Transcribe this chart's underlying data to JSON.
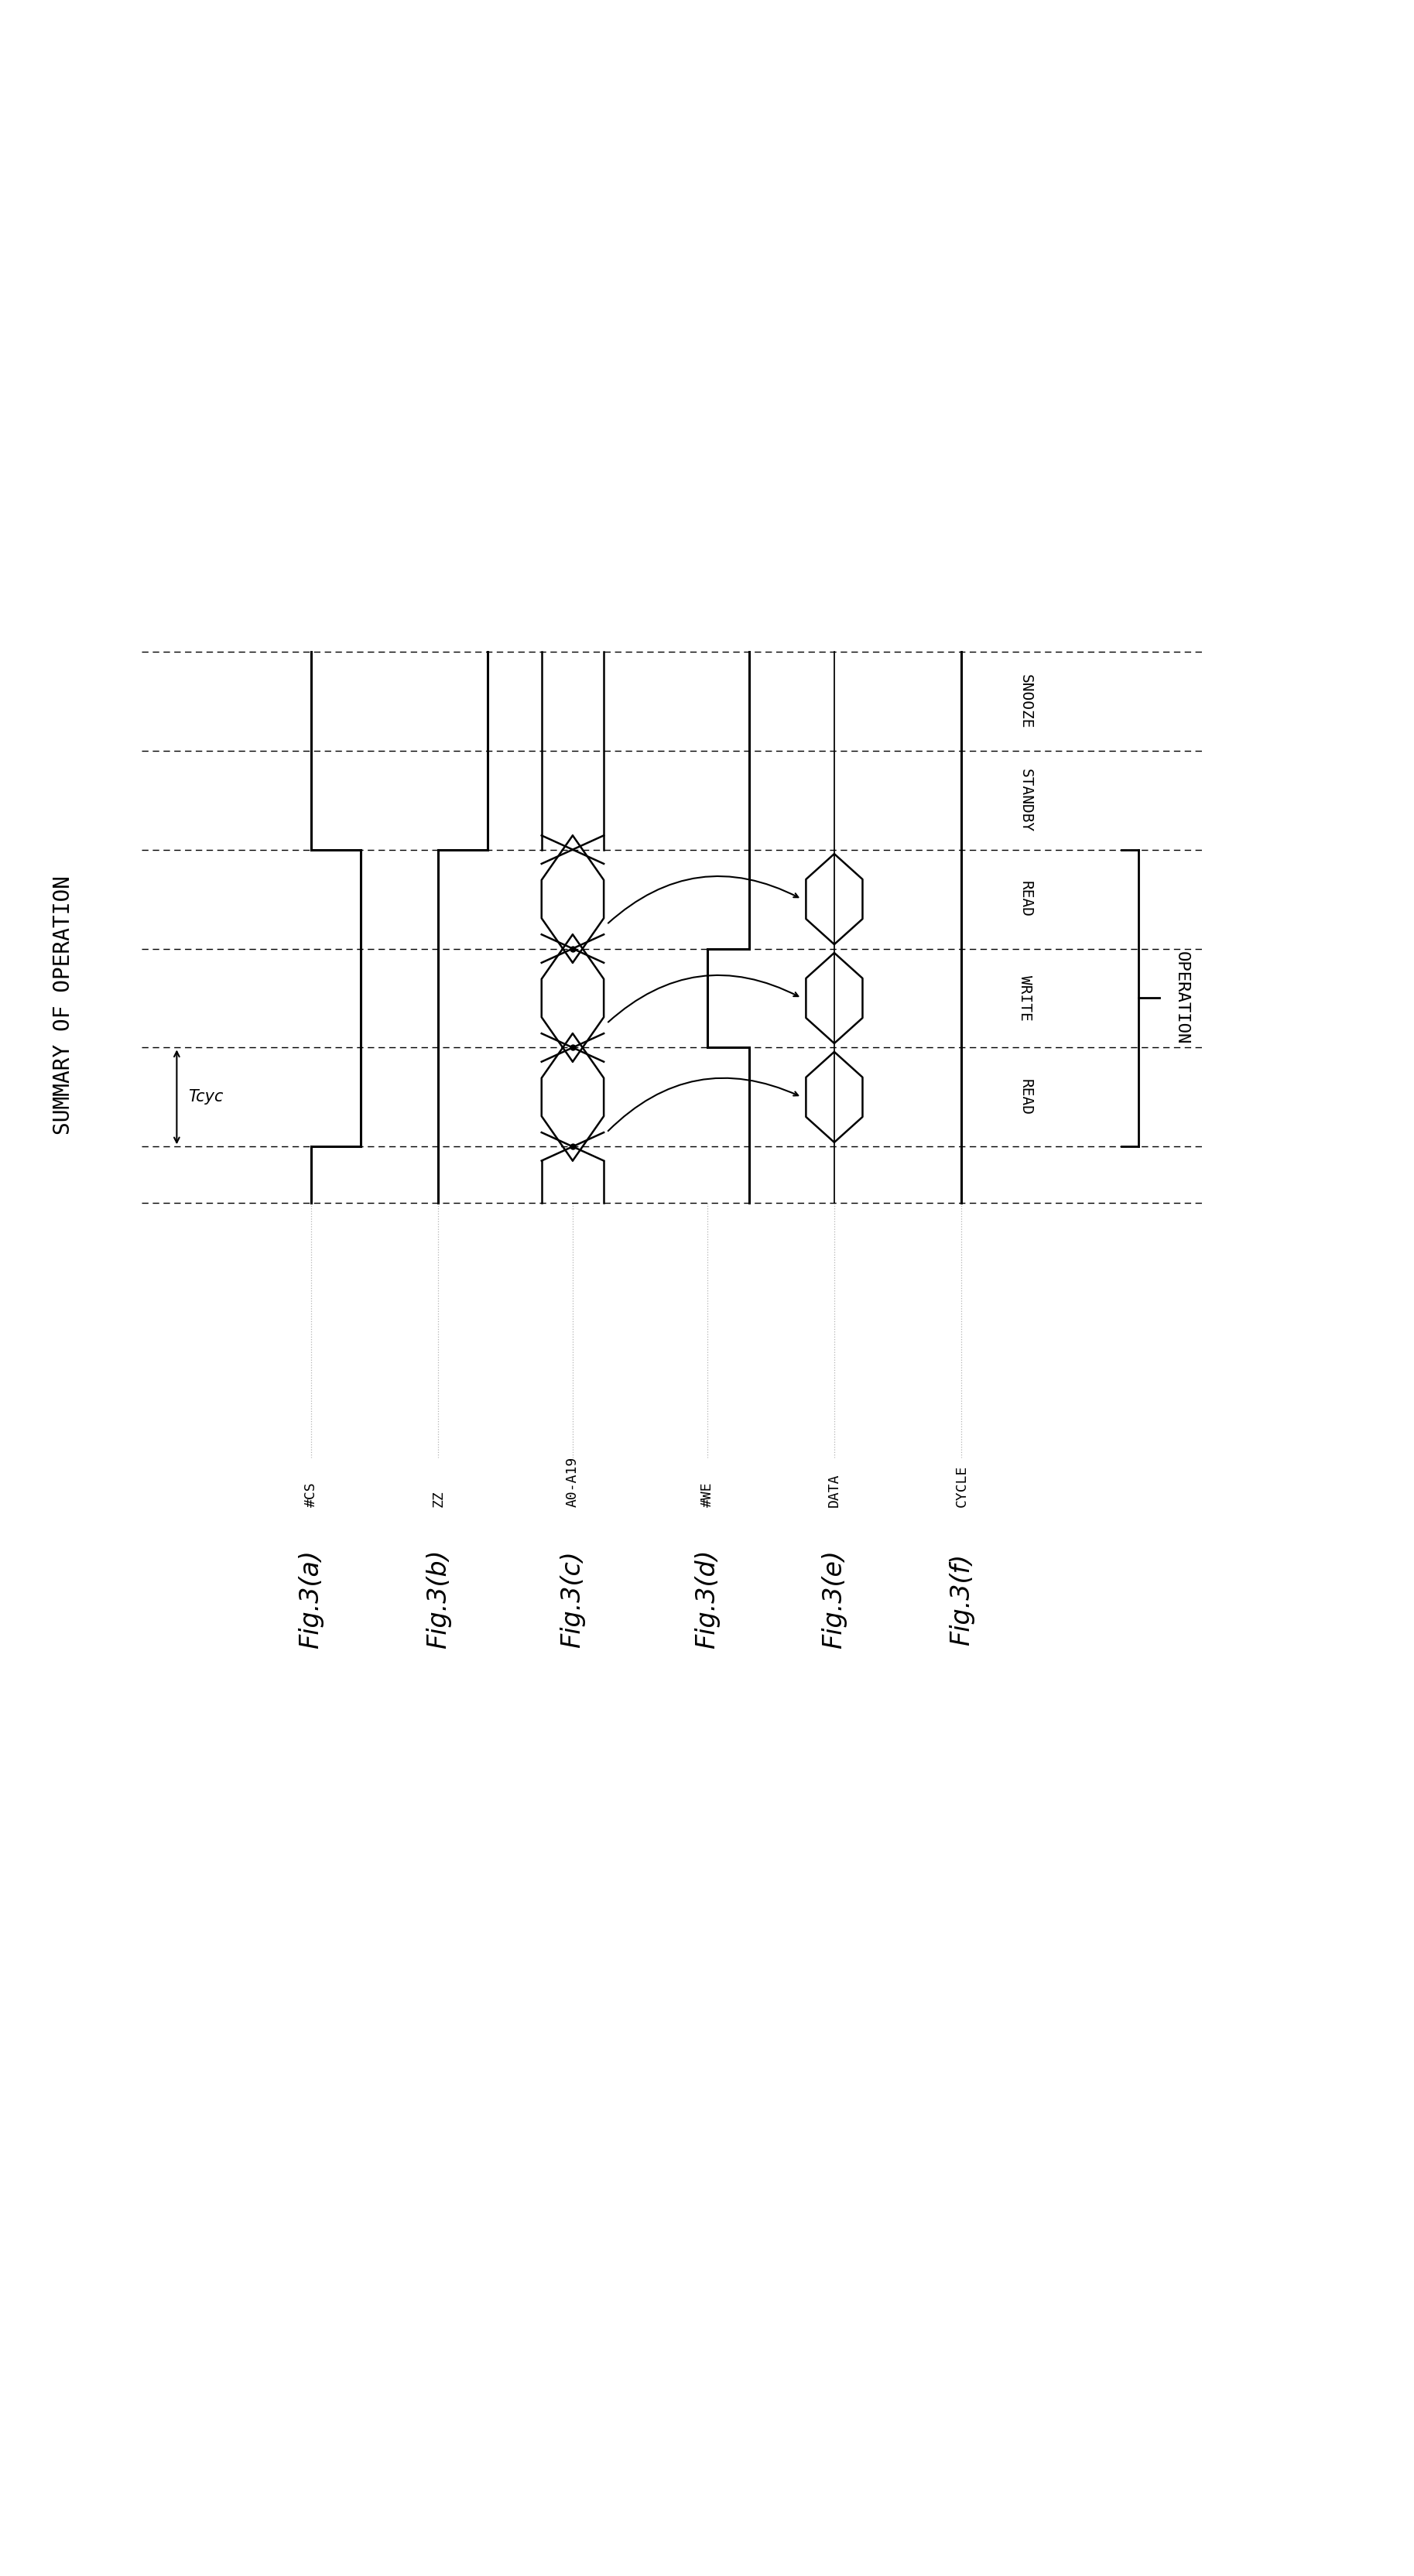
{
  "title": "SUMMARY OF OPERATION",
  "operation_label": "OPERATION",
  "fig_labels": [
    "Fig.3(a)",
    "Fig.3(b)",
    "Fig.3(c)",
    "Fig.3(d)",
    "Fig.3(e)",
    "Fig.3(f)"
  ],
  "signal_labels": [
    "#CS",
    "ZZ",
    "A0-A19",
    "#WE",
    "DATA",
    "CYCLE"
  ],
  "cycle_names": [
    "READ",
    "WRITE",
    "READ",
    "STANDBY",
    "SNOOZE"
  ],
  "tcyc_label": "Tcyc",
  "bg_color": "#ffffff",
  "line_color": "#000000"
}
